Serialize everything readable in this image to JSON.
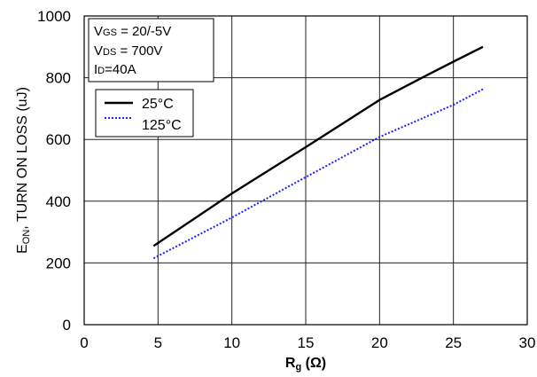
{
  "chart_data": {
    "type": "line",
    "xlim": [
      0,
      30
    ],
    "ylim": [
      0,
      1000
    ],
    "xticks": [
      "0",
      "5",
      "10",
      "15",
      "20",
      "25",
      "30"
    ],
    "yticks": [
      "0",
      "200",
      "400",
      "600",
      "800",
      "1000"
    ],
    "xlabel": {
      "main": "R",
      "sub": "g",
      "tail": " (Ω)"
    },
    "ylabel": {
      "pre": "E",
      "sub": "ON",
      "tail": ", TURN ON LOSS (uJ)"
    },
    "grid": true,
    "conditions": [
      {
        "pre": "V",
        "sub": "GS",
        "tail": " = 20/-5V"
      },
      {
        "pre": "V",
        "sub": "DS",
        "tail": " = 700V"
      },
      {
        "pre": "I",
        "sub": "D",
        "tail": "=40A"
      }
    ],
    "legend_position": "upper-left",
    "colors": {
      "s25": "#000000",
      "s125": "#1f1fff",
      "grid": "#222222"
    },
    "series": [
      {
        "name": "25°C",
        "style": "solid",
        "color": "#000000",
        "points": [
          [
            4.7,
            255
          ],
          [
            10,
            425
          ],
          [
            15,
            575
          ],
          [
            20,
            728
          ],
          [
            23,
            803
          ],
          [
            25,
            852
          ],
          [
            27,
            900
          ]
        ]
      },
      {
        "name": "125°C",
        "style": "dotted",
        "color": "#1f1fff",
        "points": [
          [
            4.7,
            215
          ],
          [
            10,
            347
          ],
          [
            15,
            478
          ],
          [
            20,
            608
          ],
          [
            25,
            712
          ],
          [
            27,
            763
          ]
        ]
      }
    ]
  }
}
